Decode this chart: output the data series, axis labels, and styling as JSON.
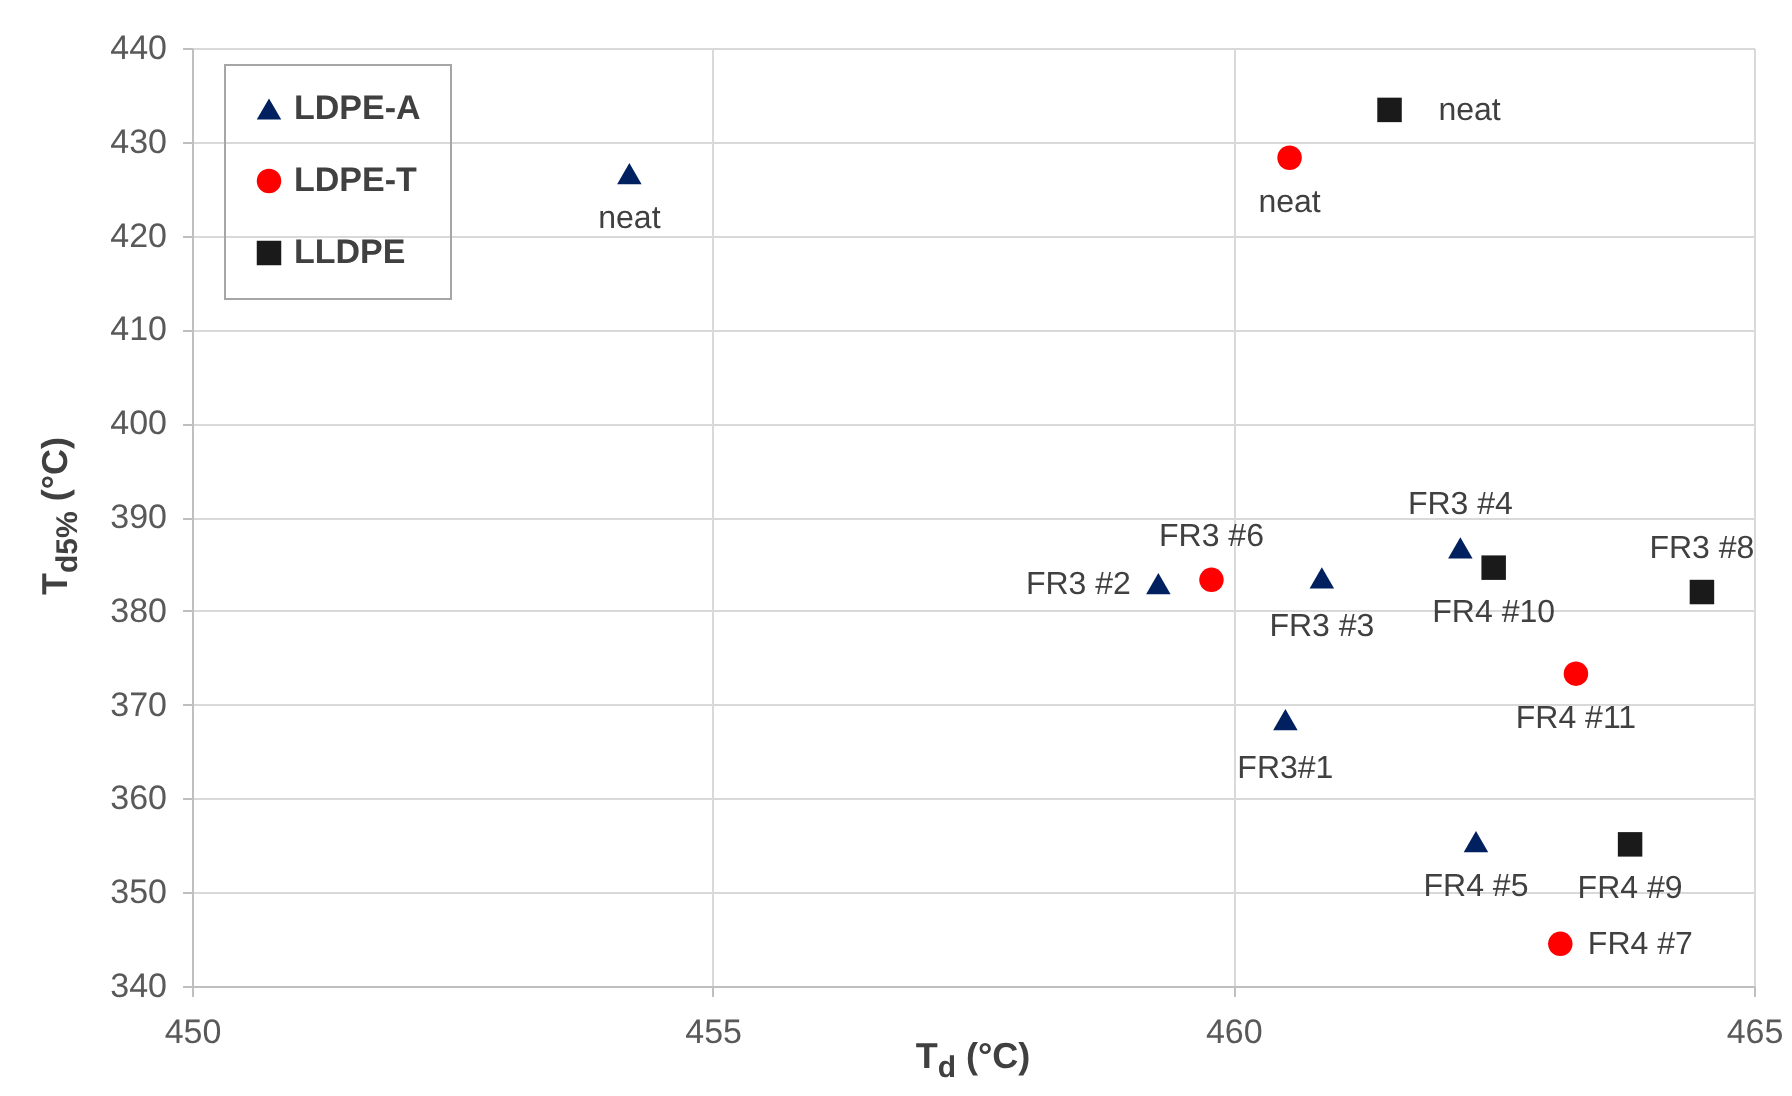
{
  "chart_data": {
    "type": "scatter",
    "xlabel": "T$_{d}$ (°C)",
    "ylabel": "T$_{d5%}$ (°C)",
    "xlim": [
      450,
      465
    ],
    "xticks": [
      450,
      455,
      460,
      465
    ],
    "ylim": [
      340,
      440
    ],
    "yticks": [
      340,
      350,
      360,
      370,
      380,
      390,
      400,
      410,
      420,
      430,
      440
    ],
    "grid": true,
    "legend": "top left",
    "series": [
      {
        "name": "LDPE-A",
        "color": "#002060",
        "marker": "triangle",
        "x": [
          454.2,
          459.28,
          460.85,
          460.5,
          462.18,
          462.33
        ],
        "values": [
          426.6,
          382.9,
          383.5,
          368.4,
          386.7,
          355.4
        ]
      },
      {
        "name": "LDPE-T",
        "color": "#ff0000",
        "marker": "circle",
        "x": [
          460.54,
          459.79,
          463.29,
          463.14
        ],
        "values": [
          428.3,
          383.3,
          373.3,
          344.5
        ]
      },
      {
        "name": "LLDPE",
        "color": "#1a1a1a",
        "marker": "square",
        "x": [
          461.5,
          462.5,
          464.5,
          463.81
        ],
        "values": [
          433.4,
          384.6,
          382.0,
          355.1
        ]
      }
    ],
    "annotations": [
      {
        "text": "neat",
        "x": 454.2,
        "y": 426.6
      },
      {
        "text": "FR3 #2",
        "x": 459.28,
        "y": 382.9
      },
      {
        "text": "FR3 #3",
        "x": 460.85,
        "y": 383.5
      },
      {
        "text": "FR3#1",
        "x": 460.5,
        "y": 368.4
      },
      {
        "text": "FR3 #4",
        "x": 462.18,
        "y": 386.7
      },
      {
        "text": "FR4 #5",
        "x": 462.33,
        "y": 355.4
      },
      {
        "text": "neat",
        "x": 460.54,
        "y": 428.3
      },
      {
        "text": "FR3 #6",
        "x": 459.79,
        "y": 383.3
      },
      {
        "text": "FR4 #11",
        "x": 463.29,
        "y": 373.3
      },
      {
        "text": "FR4 #7",
        "x": 463.14,
        "y": 344.5
      },
      {
        "text": "neat",
        "x": 461.5,
        "y": 433.4
      },
      {
        "text": "FR4 #10",
        "x": 462.5,
        "y": 384.6
      },
      {
        "text": "FR3 #8",
        "x": 464.5,
        "y": 382.0
      },
      {
        "text": "FR4 #9",
        "x": 463.81,
        "y": 355.1
      }
    ]
  }
}
